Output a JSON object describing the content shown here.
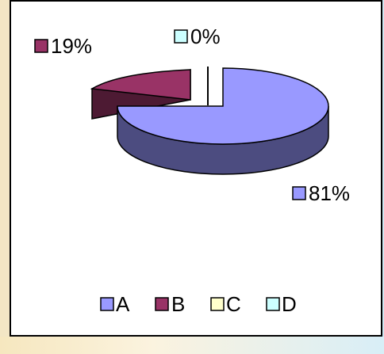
{
  "chart_data": {
    "type": "pie",
    "style": "3d-exploded",
    "categories": [
      "A",
      "B",
      "C",
      "D"
    ],
    "values": [
      81,
      19,
      0,
      0
    ],
    "data_labels": [
      "81%",
      "19%",
      "",
      "0%"
    ],
    "colors": {
      "A": "#9999ff",
      "B": "#993366",
      "C": "#ffffcc",
      "D": "#ccffff"
    },
    "legend_position": "bottom",
    "title": ""
  }
}
